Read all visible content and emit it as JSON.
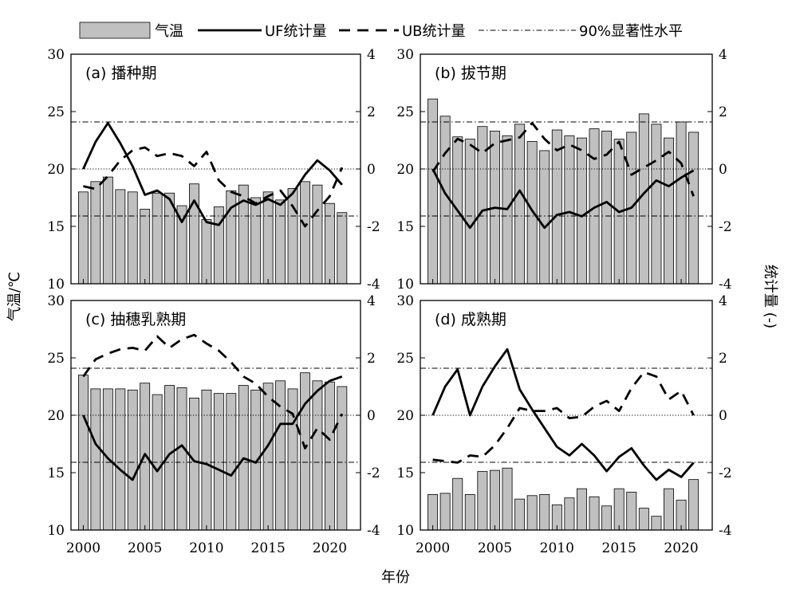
{
  "legend": {
    "items": [
      {
        "label": "气温",
        "kind": "bar"
      },
      {
        "label": "UF统计量",
        "kind": "solid"
      },
      {
        "label": "UB统计量",
        "kind": "dash"
      },
      {
        "label": "90%显著性水平",
        "kind": "dashdot"
      }
    ],
    "placement": "top"
  },
  "axes": {
    "xlabel": "年份",
    "ylabel_left": "气温/℃",
    "ylabel_right": "统计量 (-)",
    "x_ticks": [
      2000,
      2005,
      2010,
      2015,
      2020
    ],
    "right_ticks": [
      -4,
      -2,
      0,
      2,
      4
    ],
    "significance_level": 1.64
  },
  "chart_data": [
    {
      "type": "bar",
      "title": "(a) 播种期",
      "x": [
        2000,
        2001,
        2002,
        2003,
        2004,
        2005,
        2006,
        2007,
        2008,
        2009,
        2010,
        2011,
        2012,
        2013,
        2014,
        2015,
        2016,
        2017,
        2018,
        2019,
        2020,
        2021
      ],
      "ylim": [
        10,
        30
      ],
      "y_ticks": [
        10,
        15,
        20,
        25,
        30
      ],
      "y2lim": [
        -4,
        4
      ],
      "series": [
        {
          "name": "气温",
          "axis": "left",
          "values": [
            18.0,
            18.9,
            19.3,
            18.2,
            18.0,
            16.5,
            17.9,
            17.9,
            16.8,
            18.7,
            15.6,
            16.7,
            18.1,
            18.6,
            17.5,
            18.0,
            17.3,
            18.3,
            18.9,
            18.6,
            17.0,
            16.2
          ]
        },
        {
          "name": "UF统计量",
          "axis": "right",
          "values": [
            0,
            0.95,
            1.6,
            0.9,
            0.1,
            -0.9,
            -0.75,
            -1.05,
            -1.85,
            -1.1,
            -1.85,
            -1.95,
            -1.35,
            -1.1,
            -1.25,
            -1.05,
            -1.25,
            -0.85,
            -0.2,
            0.3,
            -0.05,
            -0.55
          ]
        },
        {
          "name": "UB统计量",
          "axis": "right",
          "values": [
            -0.6,
            -0.7,
            -0.25,
            0.3,
            0.65,
            0.75,
            0.45,
            0.55,
            0.45,
            0.1,
            0.6,
            -0.4,
            -0.8,
            -0.95,
            -1.2,
            -0.95,
            -0.75,
            -1.3,
            -2.0,
            -1.45,
            -0.95,
            0.05
          ]
        }
      ]
    },
    {
      "type": "bar",
      "title": "(b) 拔节期",
      "x": [
        2000,
        2001,
        2002,
        2003,
        2004,
        2005,
        2006,
        2007,
        2008,
        2009,
        2010,
        2011,
        2012,
        2013,
        2014,
        2015,
        2016,
        2017,
        2018,
        2019,
        2020,
        2021
      ],
      "ylim": [
        10,
        30
      ],
      "y_ticks": [
        10,
        15,
        20,
        25,
        30
      ],
      "y2lim": [
        -4,
        4
      ],
      "series": [
        {
          "name": "气温",
          "axis": "left",
          "values": [
            26.1,
            24.6,
            22.8,
            22.6,
            23.7,
            23.3,
            22.9,
            23.9,
            22.4,
            21.6,
            23.4,
            22.9,
            22.7,
            23.5,
            23.3,
            22.6,
            23.2,
            24.8,
            23.9,
            22.7,
            24.1,
            23.2
          ]
        },
        {
          "name": "UF统计量",
          "axis": "right",
          "values": [
            0,
            -0.85,
            -1.45,
            -2.05,
            -1.45,
            -1.35,
            -1.4,
            -0.75,
            -1.45,
            -2.05,
            -1.6,
            -1.5,
            -1.65,
            -1.35,
            -1.15,
            -1.5,
            -1.35,
            -0.85,
            -0.4,
            -0.6,
            -0.3,
            -0.05
          ]
        },
        {
          "name": "UB统计量",
          "axis": "right",
          "values": [
            -0.1,
            0.55,
            1.05,
            0.85,
            0.55,
            0.9,
            1.0,
            1.1,
            1.6,
            1.05,
            0.65,
            0.85,
            0.65,
            0.35,
            0.5,
            0.95,
            -0.2,
            0.05,
            0.3,
            0.6,
            0.2,
            -0.95
          ]
        }
      ]
    },
    {
      "type": "bar",
      "title": "(c) 抽穗乳熟期",
      "x": [
        2000,
        2001,
        2002,
        2003,
        2004,
        2005,
        2006,
        2007,
        2008,
        2009,
        2010,
        2011,
        2012,
        2013,
        2014,
        2015,
        2016,
        2017,
        2018,
        2019,
        2020,
        2021
      ],
      "ylim": [
        10,
        30
      ],
      "y_ticks": [
        10,
        15,
        20,
        25,
        30
      ],
      "y2lim": [
        -4,
        4
      ],
      "series": [
        {
          "name": "气温",
          "axis": "left",
          "values": [
            23.5,
            22.3,
            22.3,
            22.3,
            22.2,
            22.8,
            21.8,
            22.6,
            22.4,
            21.5,
            22.2,
            21.9,
            21.9,
            22.6,
            22.2,
            22.8,
            23.0,
            22.3,
            23.7,
            23.0,
            22.9,
            22.5
          ]
        },
        {
          "name": "UF统计量",
          "axis": "right",
          "values": [
            0,
            -1.0,
            -1.5,
            -1.9,
            -2.25,
            -1.35,
            -1.95,
            -1.35,
            -1.05,
            -1.6,
            -1.7,
            -1.9,
            -2.1,
            -1.5,
            -1.65,
            -1.05,
            -0.3,
            -0.3,
            0.4,
            0.85,
            1.2,
            1.35
          ]
        },
        {
          "name": "UB统计量",
          "axis": "right",
          "values": [
            1.35,
            1.95,
            2.15,
            2.3,
            2.35,
            2.25,
            2.75,
            2.35,
            2.65,
            2.8,
            2.5,
            2.25,
            1.85,
            1.35,
            1.1,
            0.65,
            0.3,
            0.05,
            -1.15,
            -0.45,
            -0.85,
            0.05
          ]
        }
      ]
    },
    {
      "type": "bar",
      "title": "(d) 成熟期",
      "x": [
        2000,
        2001,
        2002,
        2003,
        2004,
        2005,
        2006,
        2007,
        2008,
        2009,
        2010,
        2011,
        2012,
        2013,
        2014,
        2015,
        2016,
        2017,
        2018,
        2019,
        2020,
        2021
      ],
      "ylim": [
        10,
        30
      ],
      "y_ticks": [
        10,
        15,
        20,
        25,
        30
      ],
      "y2lim": [
        -4,
        4
      ],
      "series": [
        {
          "name": "气温",
          "axis": "left",
          "values": [
            13.1,
            13.2,
            14.5,
            13.1,
            15.1,
            15.2,
            15.4,
            12.7,
            13.0,
            13.1,
            12.2,
            12.8,
            13.6,
            12.9,
            12.1,
            13.6,
            13.3,
            11.9,
            11.2,
            13.6,
            12.6,
            14.4
          ]
        },
        {
          "name": "UF统计量",
          "axis": "right",
          "values": [
            0,
            1.0,
            1.6,
            0,
            1.0,
            1.7,
            2.3,
            0.9,
            0.2,
            -0.45,
            -1.1,
            -1.4,
            -1.0,
            -1.4,
            -1.95,
            -1.45,
            -1.15,
            -1.75,
            -2.25,
            -1.9,
            -2.15,
            -1.65
          ]
        },
        {
          "name": "UB统计量",
          "axis": "right",
          "values": [
            -1.55,
            -1.6,
            -1.65,
            -1.4,
            -1.45,
            -1.05,
            -0.45,
            0.25,
            0.15,
            0.15,
            0.25,
            -0.1,
            -0.05,
            0.3,
            0.5,
            0.15,
            0.95,
            1.5,
            1.35,
            0.55,
            0.85,
            0
          ]
        }
      ]
    }
  ]
}
